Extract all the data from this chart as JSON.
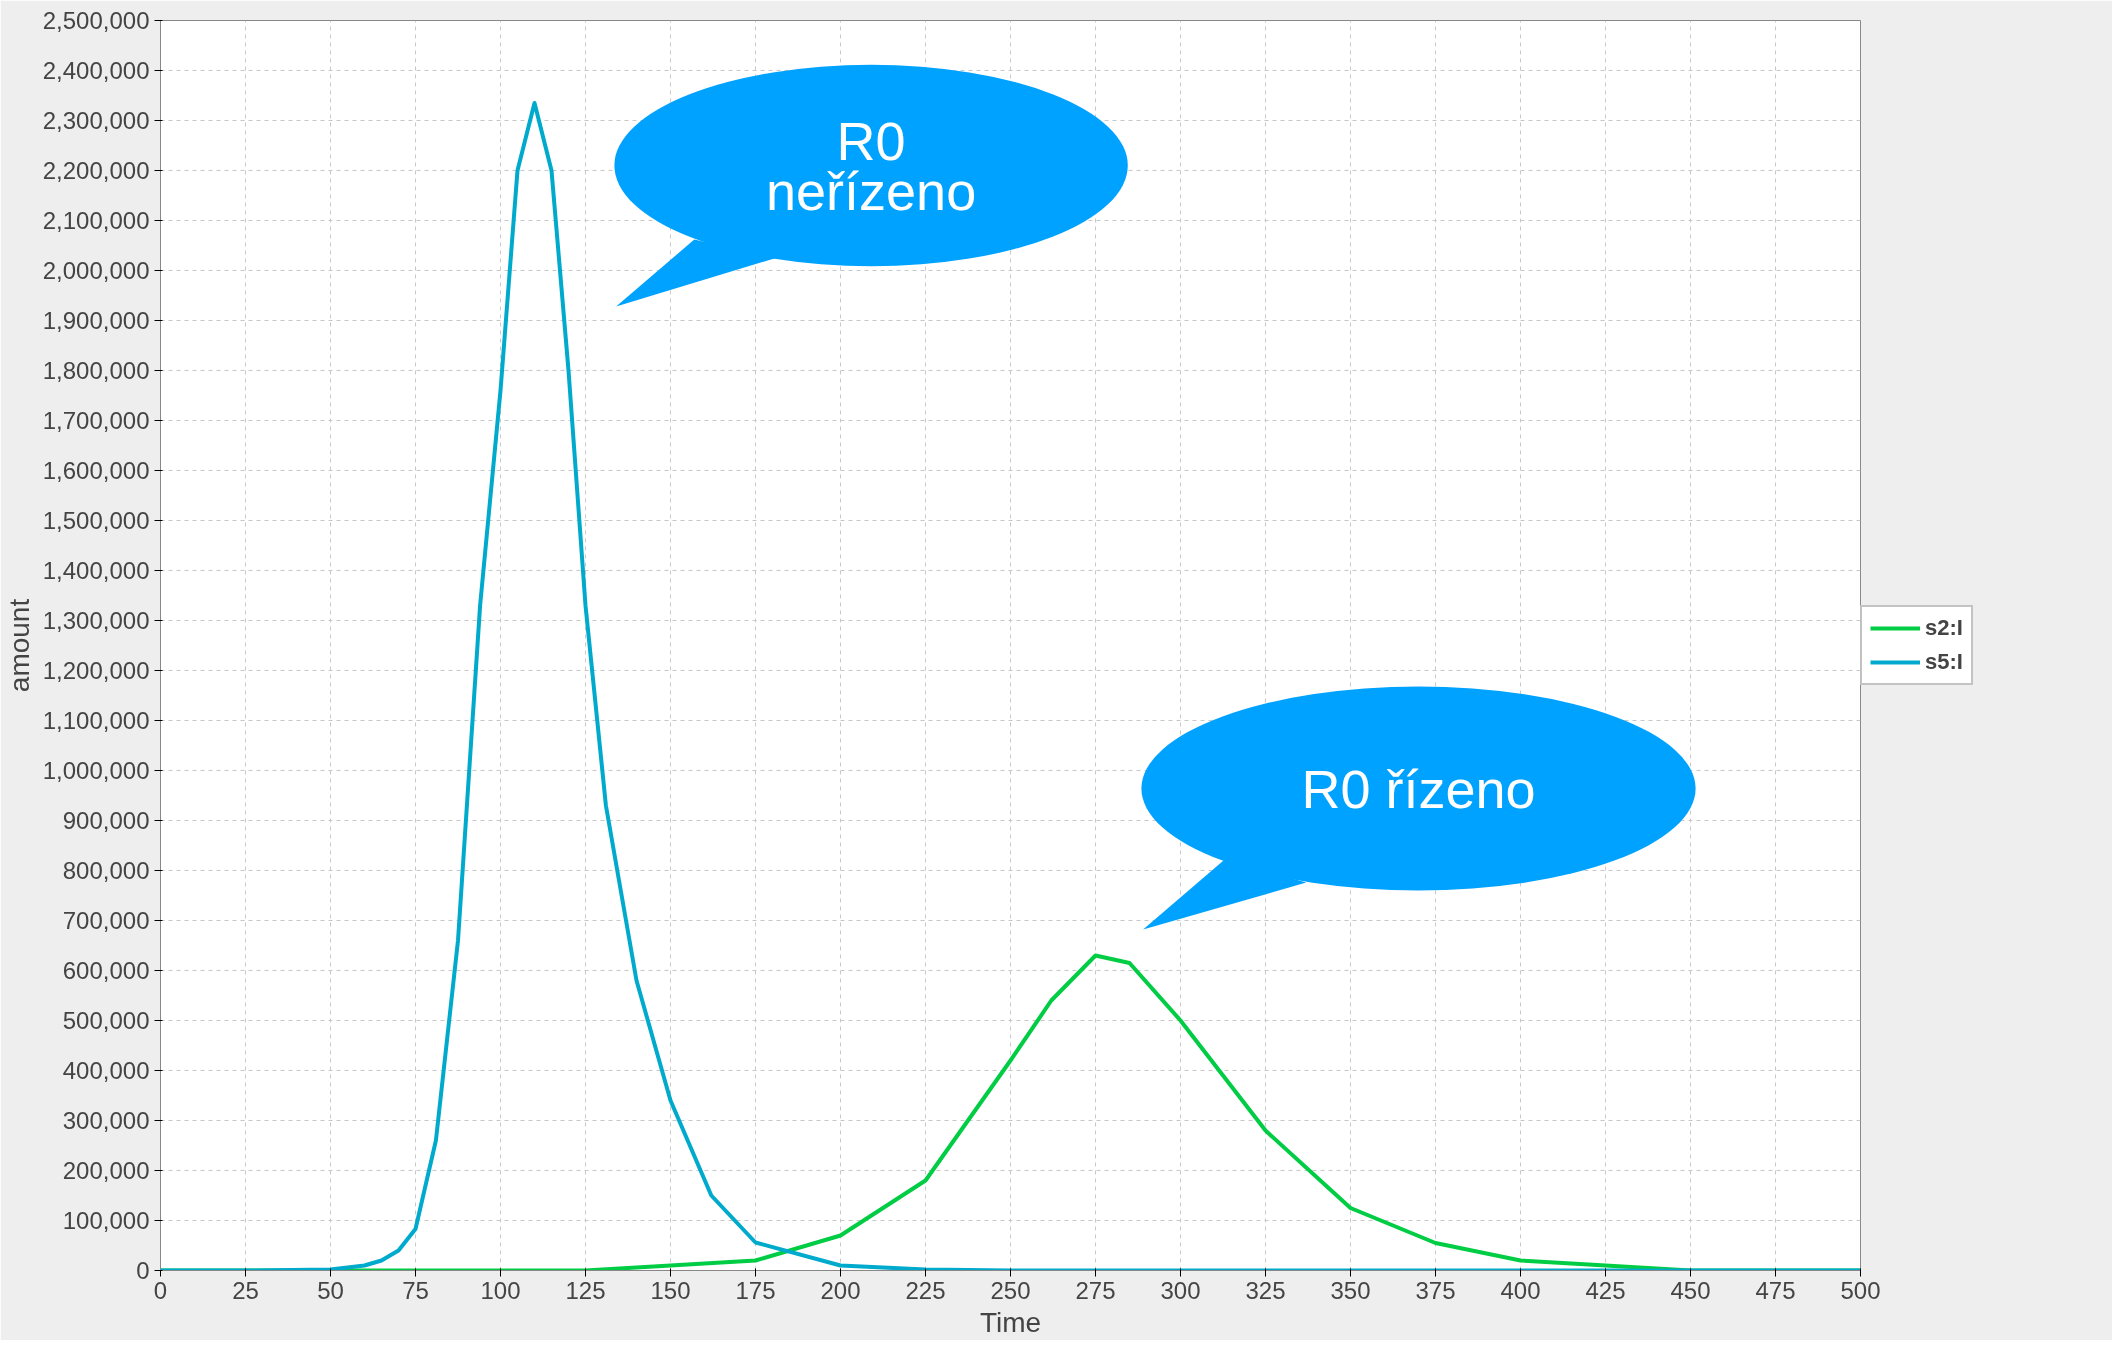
{
  "chart_data": {
    "type": "line",
    "xlabel": "Time",
    "ylabel": "amount",
    "xlim": [
      0,
      500
    ],
    "ylim": [
      0,
      2500000
    ],
    "xticks": [
      0,
      25,
      50,
      75,
      100,
      125,
      150,
      175,
      200,
      225,
      250,
      275,
      300,
      325,
      350,
      375,
      400,
      425,
      450,
      475,
      500
    ],
    "yticks": [
      0,
      {
        "value": 100000,
        "label": "100,000"
      },
      {
        "value": 200000,
        "label": "200,000"
      },
      {
        "value": 300000,
        "label": "300,000"
      },
      {
        "value": 400000,
        "label": "400,000"
      },
      {
        "value": 500000,
        "label": "500,000"
      },
      {
        "value": 600000,
        "label": "600,000"
      },
      {
        "value": 700000,
        "label": "700,000"
      },
      {
        "value": 800000,
        "label": "800,000"
      },
      {
        "value": 900000,
        "label": "900,000"
      },
      {
        "value": 1000000,
        "label": "1,000,000"
      },
      {
        "value": 1100000,
        "label": "1,100,000"
      },
      {
        "value": 1200000,
        "label": "1,200,000"
      },
      {
        "value": 1300000,
        "label": "1,300,000"
      },
      {
        "value": 1400000,
        "label": "1,400,000"
      },
      {
        "value": 1500000,
        "label": "1,500,000"
      },
      {
        "value": 1600000,
        "label": "1,600,000"
      },
      {
        "value": 1700000,
        "label": "1,700,000"
      },
      {
        "value": 1800000,
        "label": "1,800,000"
      },
      {
        "value": 1900000,
        "label": "1,900,000"
      },
      {
        "value": 2000000,
        "label": "2,000,000"
      },
      {
        "value": 2100000,
        "label": "2,100,000"
      },
      {
        "value": 2200000,
        "label": "2,200,000"
      },
      {
        "value": 2300000,
        "label": "2,300,000"
      },
      {
        "value": 2400000,
        "label": "2,400,000"
      },
      {
        "value": 2500000,
        "label": "2,500,000"
      }
    ],
    "grid": true,
    "legend": "right",
    "series": [
      {
        "name": "s2:I",
        "color": "#00cc44",
        "x": [
          0,
          50,
          100,
          125,
          150,
          175,
          200,
          225,
          250,
          262,
          275,
          285,
          300,
          325,
          350,
          375,
          400,
          425,
          450,
          475,
          500
        ],
        "values": [
          0,
          0,
          0,
          0,
          10000,
          20000,
          70000,
          180000,
          420000,
          540000,
          630000,
          615000,
          500000,
          280000,
          125000,
          55000,
          20000,
          10000,
          0,
          0,
          0
        ]
      },
      {
        "name": "s5:I",
        "color": "#00aacc",
        "x": [
          0,
          25,
          50,
          60,
          65,
          70,
          75,
          81,
          87.5,
          94,
          100,
          105,
          110,
          115,
          120,
          125,
          131,
          140,
          150,
          162,
          175,
          200,
          225,
          250,
          500
        ],
        "values": [
          0,
          0,
          2000,
          10000,
          20000,
          40000,
          83000,
          260000,
          660000,
          1330000,
          1760000,
          2200000,
          2335000,
          2200000,
          1800000,
          1330000,
          930000,
          580000,
          340000,
          150000,
          56000,
          10000,
          2000,
          0,
          0
        ]
      }
    ],
    "annotations": [
      "R0\nneřízeno",
      "R0 řízeno"
    ]
  }
}
